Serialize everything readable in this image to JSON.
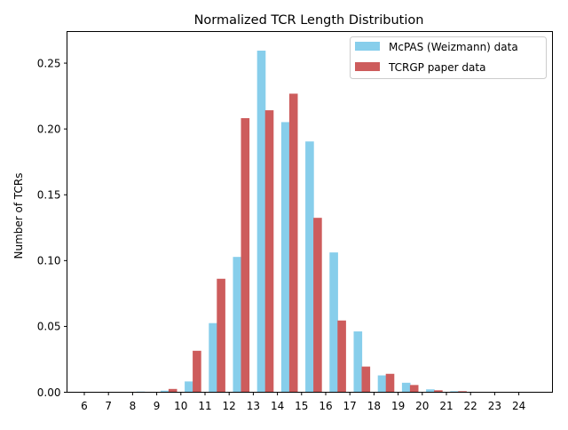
{
  "chart_data": {
    "type": "bar",
    "title": "Normalized TCR Length Distribution",
    "xlabel": "",
    "ylabel": "Number of TCRs",
    "categories": [
      "6",
      "7",
      "8",
      "9",
      "10",
      "11",
      "12",
      "13",
      "14",
      "15",
      "16",
      "17",
      "18",
      "19",
      "20",
      "21",
      "22",
      "23",
      "24"
    ],
    "ylim": [
      0,
      0.274
    ],
    "yticks": [
      "0.00",
      "0.05",
      "0.10",
      "0.15",
      "0.20",
      "0.25"
    ],
    "legend_position": "top-right",
    "grid": false,
    "series": [
      {
        "name": "McPAS (Weizmann) data",
        "color": "#87ceeb",
        "offset": "right",
        "values": [
          0,
          0,
          0.0005,
          0.0012,
          0.0082,
          0.0525,
          0.1028,
          0.2595,
          0.2052,
          0.1905,
          0.1062,
          0.0462,
          0.0128,
          0.0072,
          0.0022,
          0.0008,
          0.0003,
          0,
          0
        ]
      },
      {
        "name": "TCRGP paper data",
        "color": "#cd5c5c",
        "offset": "left",
        "values": [
          0,
          0,
          0,
          0,
          0.0025,
          0.0315,
          0.0862,
          0.2082,
          0.2142,
          0.2268,
          0.1325,
          0.0545,
          0.0195,
          0.014,
          0.0055,
          0.0015,
          0.0008,
          0,
          0
        ]
      }
    ]
  }
}
